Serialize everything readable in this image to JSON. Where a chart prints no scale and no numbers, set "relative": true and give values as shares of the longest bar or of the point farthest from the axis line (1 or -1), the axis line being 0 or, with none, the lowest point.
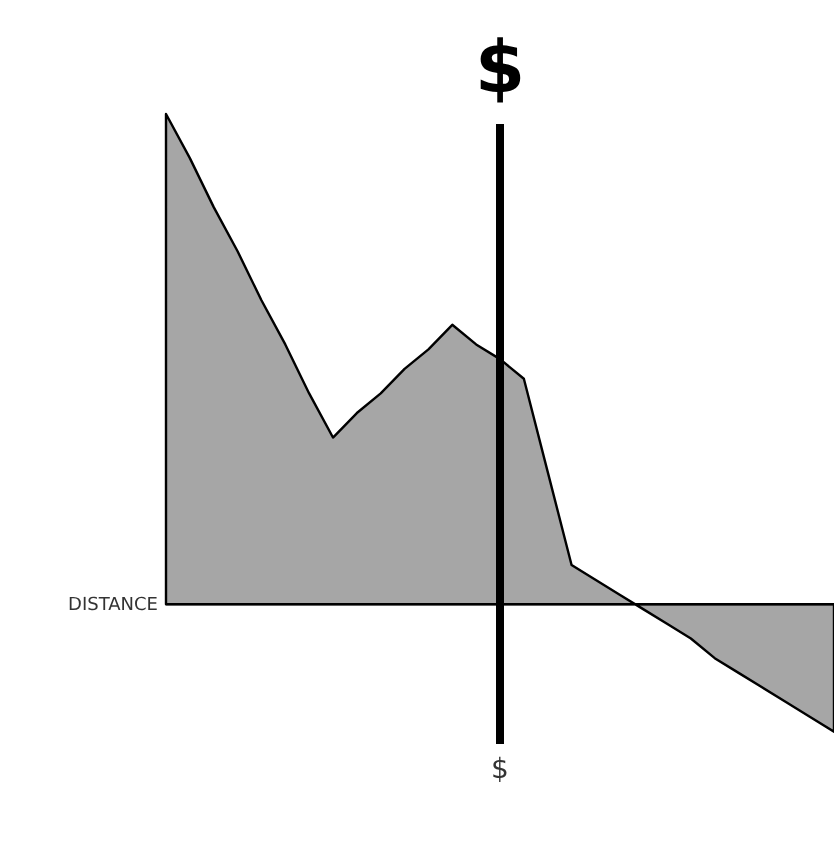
{
  "chart_data": {
    "type": "area",
    "relative": true,
    "xlabel": "DISTANCE",
    "tick_labels": false,
    "categories": [
      null,
      null,
      null,
      null,
      null,
      null,
      null,
      null,
      null,
      null,
      null,
      null,
      null,
      null,
      null,
      null,
      null,
      null,
      null,
      null,
      null,
      null,
      null,
      null,
      null,
      null,
      null,
      null,
      null
    ],
    "values": [
      1,
      0.91,
      0.81,
      0.72,
      0.62,
      0.53,
      0.43,
      0.34,
      0.39,
      0.43,
      0.48,
      0.52,
      0.57,
      0.53,
      0.5,
      0.46,
      0.27,
      0.08,
      0.05,
      0.02,
      -0.01,
      -0.04,
      -0.07,
      -0.11,
      -0.14,
      -0.17,
      -0.2,
      -0.23,
      -0.26
    ],
    "color": "#000000",
    "annotations": [
      "$",
      "$"
    ]
  }
}
